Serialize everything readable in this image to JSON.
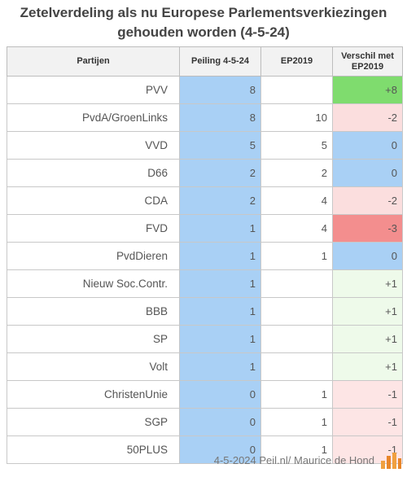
{
  "title": "Zetelverdeling als nu Europese Parlementsverkiezingen gehouden worden (4-5-24)",
  "headers": [
    "Partijen",
    "Peiling 4-5-24",
    "EP2019",
    "Verschil met EP2019"
  ],
  "rows": [
    {
      "party": "PVV",
      "peiling": "8",
      "ep2019": "",
      "verschil": "+8",
      "cls": "c-pp8"
    },
    {
      "party": "PvdA/GroenLinks",
      "peiling": "8",
      "ep2019": "10",
      "verschil": "-2",
      "cls": "c-min2"
    },
    {
      "party": "VVD",
      "peiling": "5",
      "ep2019": "5",
      "verschil": "0",
      "cls": "c-zero"
    },
    {
      "party": "D66",
      "peiling": "2",
      "ep2019": "2",
      "verschil": "0",
      "cls": "c-zero"
    },
    {
      "party": "CDA",
      "peiling": "2",
      "ep2019": "4",
      "verschil": "-2",
      "cls": "c-min2"
    },
    {
      "party": "FVD",
      "peiling": "1",
      "ep2019": "4",
      "verschil": "-3",
      "cls": "c-min3"
    },
    {
      "party": "PvdDieren",
      "peiling": "1",
      "ep2019": "1",
      "verschil": "0",
      "cls": "c-zero"
    },
    {
      "party": "Nieuw Soc.Contr.",
      "peiling": "1",
      "ep2019": "",
      "verschil": "+1",
      "cls": "c-plus1"
    },
    {
      "party": "BBB",
      "peiling": "1",
      "ep2019": "",
      "verschil": "+1",
      "cls": "c-plus1"
    },
    {
      "party": "SP",
      "peiling": "1",
      "ep2019": "",
      "verschil": "+1",
      "cls": "c-plus1"
    },
    {
      "party": "Volt",
      "peiling": "1",
      "ep2019": "",
      "verschil": "+1",
      "cls": "c-plus1"
    },
    {
      "party": "ChristenUnie",
      "peiling": "0",
      "ep2019": "1",
      "verschil": "-1",
      "cls": "c-min1"
    },
    {
      "party": "SGP",
      "peiling": "0",
      "ep2019": "1",
      "verschil": "-1",
      "cls": "c-min1"
    },
    {
      "party": "50PLUS",
      "peiling": "0",
      "ep2019": "1",
      "verschil": "-1",
      "cls": "c-min1"
    }
  ],
  "footer": "4-5-2024 Peil.nl/ Maurice de Hond",
  "colors": {
    "peiling": "#a9d0f5",
    "positive_large": "#7fdc6e",
    "zero": "#a9d0f5",
    "negative_large": "#f38e8e",
    "negative": "#fbdede",
    "positive": "#eefaea"
  }
}
